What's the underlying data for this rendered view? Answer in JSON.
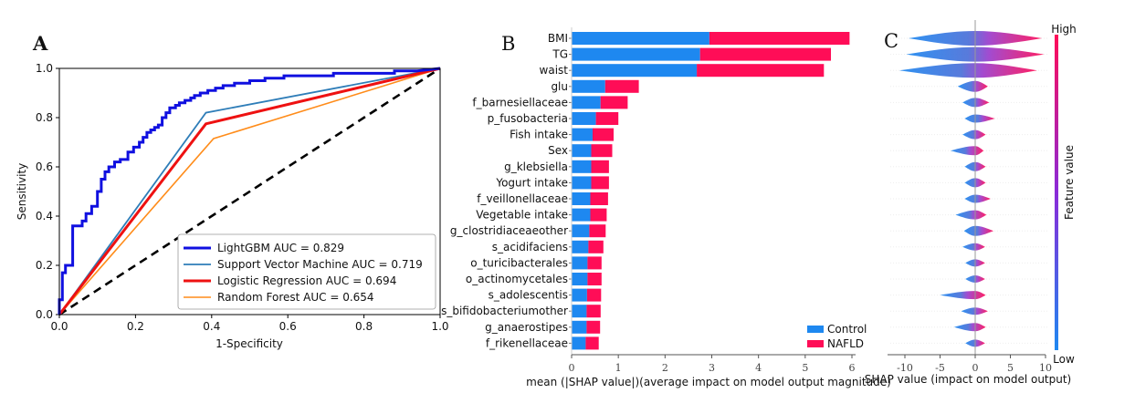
{
  "chart_data": [
    {
      "type": "line",
      "panel": "A",
      "xlabel": "1-Specificity",
      "ylabel": "Sensitivity",
      "xlim": [
        0,
        1
      ],
      "ylim": [
        0,
        1
      ],
      "xticks": [
        "0.0",
        "0.2",
        "0.4",
        "0.6",
        "0.8",
        "1.0"
      ],
      "yticks": [
        "0.0",
        "0.2",
        "0.4",
        "0.6",
        "0.8",
        "1.0"
      ],
      "legend_position": "bottom-right",
      "colors": {
        "lightgbm": "#1010e0",
        "svm": "#2e7db8",
        "lr": "#ee1111",
        "rf": "#ff8c1a",
        "diagonal": "#000000"
      },
      "series": [
        {
          "key": "lightgbm",
          "name": "LightGBM AUC = 0.829",
          "x": [
            0,
            0,
            0.008,
            0.008,
            0.016,
            0.016,
            0.035,
            0.035,
            0.06,
            0.06,
            0.07,
            0.07,
            0.085,
            0.085,
            0.1,
            0.1,
            0.11,
            0.11,
            0.12,
            0.12,
            0.13,
            0.13,
            0.145,
            0.145,
            0.16,
            0.16,
            0.18,
            0.18,
            0.195,
            0.195,
            0.21,
            0.21,
            0.22,
            0.22,
            0.23,
            0.23,
            0.24,
            0.24,
            0.25,
            0.25,
            0.26,
            0.26,
            0.27,
            0.27,
            0.28,
            0.28,
            0.29,
            0.29,
            0.305,
            0.305,
            0.315,
            0.315,
            0.33,
            0.33,
            0.345,
            0.345,
            0.355,
            0.355,
            0.37,
            0.37,
            0.39,
            0.39,
            0.41,
            0.41,
            0.43,
            0.43,
            0.46,
            0.46,
            0.5,
            0.5,
            0.54,
            0.54,
            0.59,
            0.59,
            0.65,
            0.65,
            0.72,
            0.72,
            0.8,
            0.8,
            0.88,
            0.88,
            0.94,
            1.0
          ],
          "y": [
            0,
            0.06,
            0.06,
            0.17,
            0.17,
            0.2,
            0.2,
            0.36,
            0.36,
            0.38,
            0.38,
            0.41,
            0.41,
            0.44,
            0.44,
            0.5,
            0.5,
            0.55,
            0.55,
            0.58,
            0.58,
            0.6,
            0.6,
            0.62,
            0.62,
            0.63,
            0.63,
            0.66,
            0.66,
            0.68,
            0.68,
            0.7,
            0.7,
            0.72,
            0.72,
            0.74,
            0.74,
            0.75,
            0.75,
            0.76,
            0.76,
            0.77,
            0.77,
            0.8,
            0.8,
            0.82,
            0.82,
            0.84,
            0.84,
            0.85,
            0.85,
            0.86,
            0.86,
            0.87,
            0.87,
            0.88,
            0.88,
            0.89,
            0.89,
            0.9,
            0.9,
            0.91,
            0.91,
            0.92,
            0.92,
            0.93,
            0.93,
            0.94,
            0.94,
            0.95,
            0.95,
            0.96,
            0.96,
            0.97,
            0.97,
            0.97,
            0.97,
            0.98,
            0.98,
            0.98,
            0.98,
            0.99,
            0.99,
            1.0
          ]
        },
        {
          "key": "svm",
          "name": "Support Vector Machine AUC = 0.719",
          "x": [
            0,
            0.385,
            1
          ],
          "y": [
            0,
            0.82,
            1
          ]
        },
        {
          "key": "lr",
          "name": "Logistic Regression AUC = 0.694",
          "x": [
            0,
            0.385,
            1
          ],
          "y": [
            0,
            0.775,
            1
          ]
        },
        {
          "key": "rf",
          "name": "Random Forest AUC = 0.654",
          "x": [
            0,
            0.405,
            1
          ],
          "y": [
            0,
            0.715,
            1
          ]
        },
        {
          "key": "diagonal",
          "name": "",
          "x": [
            0,
            1
          ],
          "y": [
            0,
            1
          ],
          "dashed": true
        }
      ]
    },
    {
      "type": "bar",
      "panel": "B",
      "orientation": "horizontal",
      "stacked": true,
      "xlabel": "mean (|SHAP value|)(average impact on model output magnitude)",
      "xlim": [
        0,
        6.3
      ],
      "xticks": [
        "0",
        "1",
        "2",
        "3",
        "4",
        "5",
        "6"
      ],
      "legend_position": "bottom-right",
      "colors": {
        "Control": "#1e88f0",
        "NAFLD": "#ff0d57"
      },
      "categories": [
        "BMI",
        "TG",
        "waist",
        "glu",
        "f_barnesiellaceae",
        "p_fusobacteria",
        "Fish intake",
        "Sex",
        "g_klebsiella",
        "Yogurt intake",
        "f_veillonellaceae",
        "Vegetable intake",
        "g_clostridiaceaeother",
        "s_acidifaciens",
        "o_turicibacterales",
        "o_actinomycetales",
        "s_adolescentis",
        "s_bifidobacteriumother",
        "g_anaerostipes",
        "f_rikenellaceae"
      ],
      "series": [
        {
          "name": "Control",
          "values": [
            2.95,
            2.75,
            2.68,
            0.72,
            0.62,
            0.52,
            0.45,
            0.42,
            0.42,
            0.42,
            0.4,
            0.4,
            0.38,
            0.36,
            0.34,
            0.34,
            0.33,
            0.32,
            0.32,
            0.3
          ]
        },
        {
          "name": "NAFLD",
          "values": [
            3.0,
            2.8,
            2.72,
            0.72,
            0.58,
            0.48,
            0.45,
            0.45,
            0.38,
            0.38,
            0.38,
            0.35,
            0.35,
            0.32,
            0.3,
            0.3,
            0.3,
            0.3,
            0.29,
            0.28
          ]
        }
      ]
    },
    {
      "type": "scatter",
      "panel": "C",
      "subtype": "beeswarm",
      "xlabel": "SHAP value   (impact on model output)",
      "xlim": [
        -13,
        11.5
      ],
      "xticks": [
        "-10",
        "-5",
        "0",
        "5",
        "10"
      ],
      "colorbar": {
        "label": "Feature value",
        "high": "High",
        "low": "Low",
        "high_color": "#ff0d57",
        "low_color": "#1e88f0"
      },
      "features": [
        {
          "spread": [
            -9.5,
            9.5
          ],
          "height": 16
        },
        {
          "spread": [
            -9.8,
            9.8
          ],
          "height": 16
        },
        {
          "spread": [
            -10.8,
            8.8
          ],
          "height": 16
        },
        {
          "spread": [
            -2.5,
            1.8
          ],
          "height": 12
        },
        {
          "spread": [
            -1.8,
            2.0
          ],
          "height": 10
        },
        {
          "spread": [
            -1.5,
            2.8
          ],
          "height": 9
        },
        {
          "spread": [
            -1.8,
            1.5
          ],
          "height": 10
        },
        {
          "spread": [
            -3.5,
            1.2
          ],
          "height": 10
        },
        {
          "spread": [
            -1.5,
            1.5
          ],
          "height": 10
        },
        {
          "spread": [
            -1.5,
            1.5
          ],
          "height": 10
        },
        {
          "spread": [
            -1.5,
            2.2
          ],
          "height": 9
        },
        {
          "spread": [
            -2.8,
            1.6
          ],
          "height": 10
        },
        {
          "spread": [
            -1.6,
            2.6
          ],
          "height": 11
        },
        {
          "spread": [
            -1.8,
            1.4
          ],
          "height": 8
        },
        {
          "spread": [
            -1.4,
            1.4
          ],
          "height": 8
        },
        {
          "spread": [
            -1.4,
            1.4
          ],
          "height": 8
        },
        {
          "spread": [
            -5.0,
            1.5
          ],
          "height": 9
        },
        {
          "spread": [
            -2.0,
            1.8
          ],
          "height": 8
        },
        {
          "spread": [
            -3.0,
            1.5
          ],
          "height": 9
        },
        {
          "spread": [
            -1.4,
            1.4
          ],
          "height": 8
        }
      ]
    }
  ]
}
